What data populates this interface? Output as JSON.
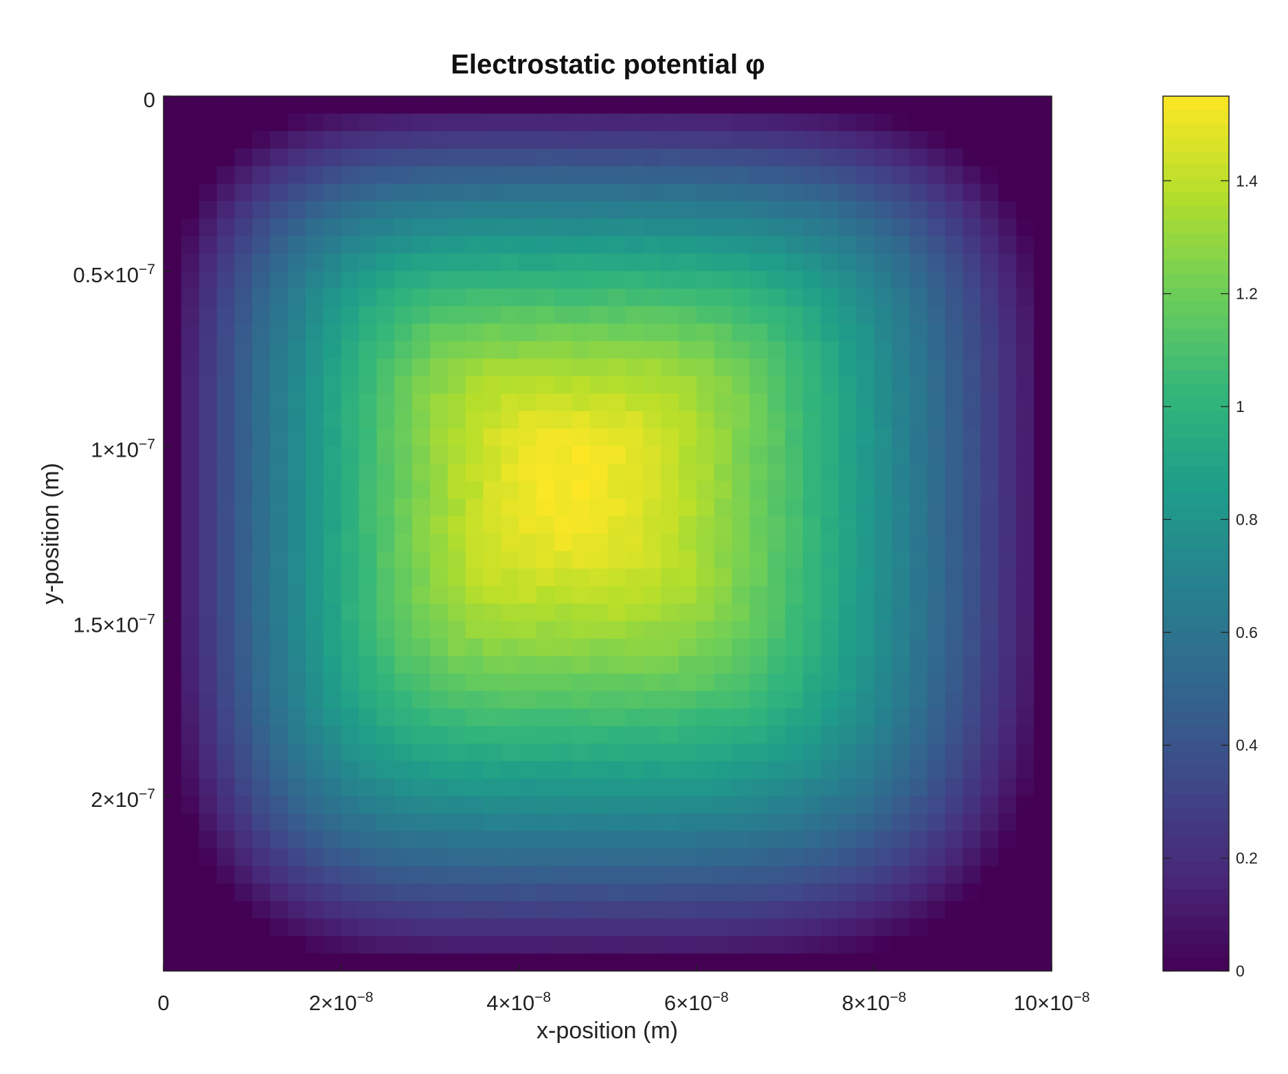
{
  "chart_data": {
    "type": "heatmap",
    "title": "Electrostatic potential φ",
    "xlabel": "x-position (m)",
    "ylabel": "y-position (m)",
    "xlim": [
      0,
      1e-07
    ],
    "ylim": [
      0,
      2.5e-07
    ],
    "y_axis_direction": "top-to-bottom",
    "x_ticks": [
      {
        "value": 0,
        "mant": "0",
        "exp": ""
      },
      {
        "value": 2e-08,
        "mant": "2×10",
        "exp": "−8"
      },
      {
        "value": 4e-08,
        "mant": "4×10",
        "exp": "−8"
      },
      {
        "value": 6e-08,
        "mant": "6×10",
        "exp": "−8"
      },
      {
        "value": 8e-08,
        "mant": "8×10",
        "exp": "−8"
      },
      {
        "value": 1e-07,
        "mant": "10×10",
        "exp": "−8"
      }
    ],
    "y_ticks": [
      {
        "value": 0,
        "mant": "0",
        "exp": ""
      },
      {
        "value": 5e-08,
        "mant": "0.5×10",
        "exp": "−7"
      },
      {
        "value": 1e-07,
        "mant": "1×10",
        "exp": "−7"
      },
      {
        "value": 1.5e-07,
        "mant": "1.5×10",
        "exp": "−7"
      },
      {
        "value": 2e-07,
        "mant": "2×10",
        "exp": "−7"
      }
    ],
    "grid_cols": 50,
    "grid_rows": 50,
    "value_description": "potential peaks near x≈4.5e-8, y≈1.1e-7 at ~1.55 and falls to 0 at all boundaries",
    "peak": {
      "x": 4.5e-08,
      "y": 1.1e-07,
      "value": 1.55
    },
    "colorbar": {
      "colormap": "viridis",
      "range": [
        0,
        1.55
      ],
      "ticks": [
        "0",
        "0.2",
        "0.4",
        "0.6",
        "0.8",
        "1",
        "1.2",
        "1.4"
      ],
      "tick_values": [
        0,
        0.2,
        0.4,
        0.6,
        0.8,
        1.0,
        1.2,
        1.4
      ]
    },
    "colors": {
      "viridis": [
        "#440154",
        "#482878",
        "#3e4a89",
        "#31688e",
        "#26828e",
        "#1f9e89",
        "#35b779",
        "#6ece58",
        "#b5de2b",
        "#fde725"
      ]
    }
  }
}
